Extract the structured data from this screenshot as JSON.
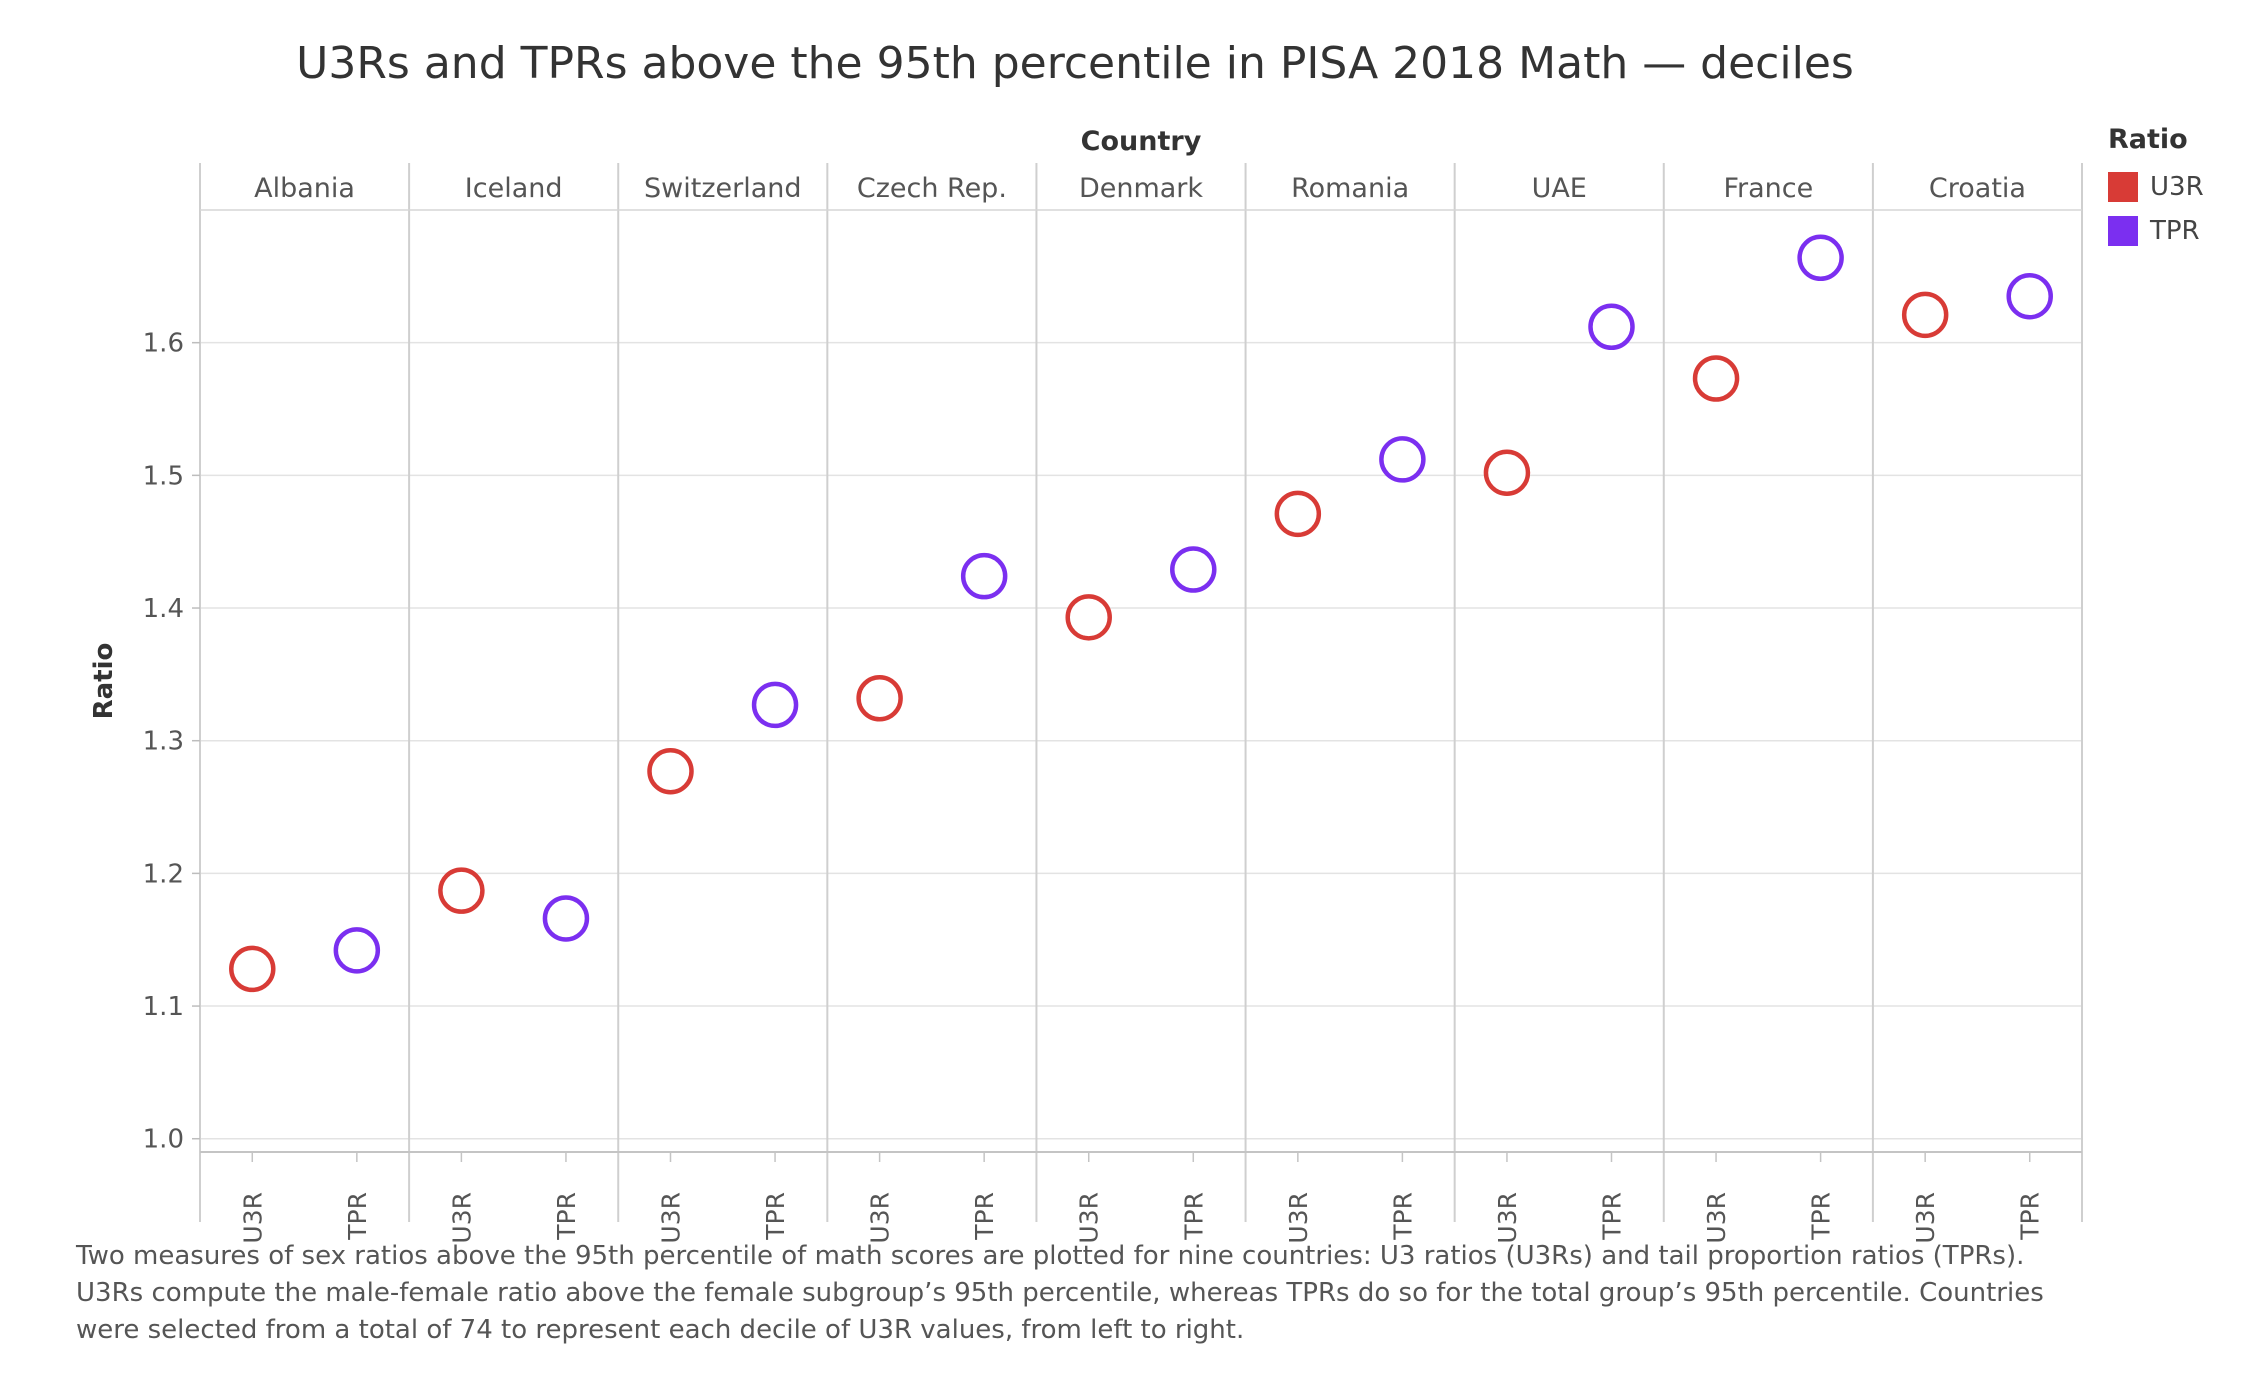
{
  "chart_data": {
    "type": "scatter",
    "title": "U3Rs and TPRs above the 95th percentile in PISA 2018 Math — deciles",
    "facet_header": "Country",
    "ylabel": "Ratio",
    "ylim": [
      0.99,
      1.7
    ],
    "yticks": [
      1.0,
      1.1,
      1.2,
      1.3,
      1.4,
      1.5,
      1.6
    ],
    "yticks_text": [
      "1.0",
      "1.1",
      "1.2",
      "1.3",
      "1.4",
      "1.5",
      "1.6"
    ],
    "grid": true,
    "marker": "open-circle",
    "categories": [
      "U3R",
      "TPR"
    ],
    "countries": [
      "Albania",
      "Iceland",
      "Switzerland",
      "Czech Rep.",
      "Denmark",
      "Romania",
      "UAE",
      "France",
      "Croatia"
    ],
    "series": [
      {
        "name": "U3R",
        "color": "#d83b36",
        "values": [
          1.128,
          1.187,
          1.277,
          1.332,
          1.393,
          1.471,
          1.502,
          1.573,
          1.621
        ]
      },
      {
        "name": "TPR",
        "color": "#7b2ff0",
        "values": [
          1.142,
          1.166,
          1.327,
          1.424,
          1.429,
          1.512,
          1.612,
          1.664,
          1.635
        ]
      }
    ],
    "legend": {
      "title": "Ratio",
      "position": "top-right"
    }
  },
  "caption": "Two measures of sex ratios above the 95th percentile of math scores are plotted for nine countries: U3 ratios (U3Rs) and tail proportion ratios (TPRs). U3Rs compute the male-female ratio above the female subgroup’s 95th percentile, whereas TPRs do so for the total group’s 95th percentile. Countries were selected from a total of 74 to represent each decile of U3R values, from left to right."
}
